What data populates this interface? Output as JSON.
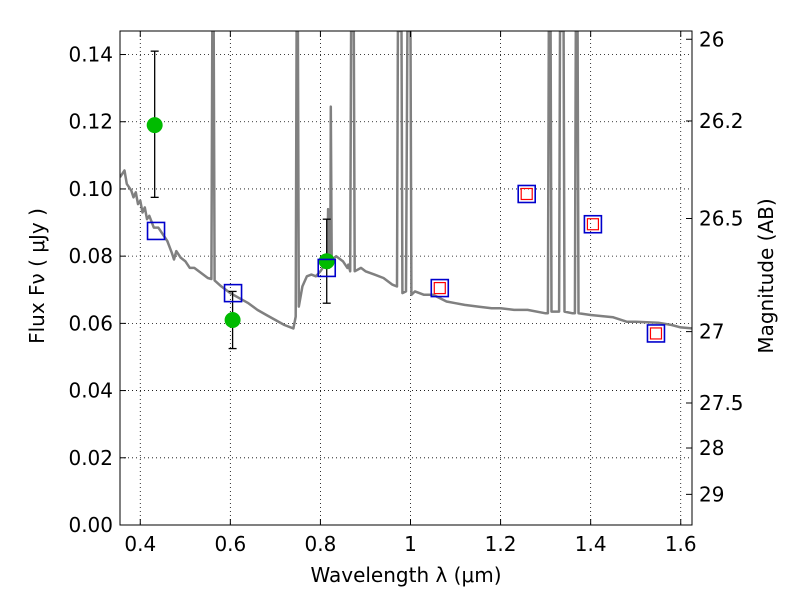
{
  "chart_data": {
    "type": "scatter",
    "xlabel": "Wavelength  λ (μm)",
    "ylabel": "Flux  Fν  ( μJy )",
    "y2label": "Magnitude (AB)",
    "xlim": [
      0.355,
      1.625
    ],
    "ylim": [
      0.0,
      0.147
    ],
    "grid": true,
    "grid_style": "dotted",
    "x_ticks": [
      {
        "value": 0.4,
        "label": "0.4"
      },
      {
        "value": 0.6,
        "label": "0.6"
      },
      {
        "value": 0.8,
        "label": "0.8"
      },
      {
        "value": 1.0,
        "label": "1"
      },
      {
        "value": 1.2,
        "label": "1.2"
      },
      {
        "value": 1.4,
        "label": "1.4"
      },
      {
        "value": 1.6,
        "label": "1.6"
      }
    ],
    "y_ticks": [
      {
        "value": 0.0,
        "label": "0.00"
      },
      {
        "value": 0.02,
        "label": "0.02"
      },
      {
        "value": 0.04,
        "label": "0.04"
      },
      {
        "value": 0.06,
        "label": "0.06"
      },
      {
        "value": 0.08,
        "label": "0.08"
      },
      {
        "value": 0.1,
        "label": "0.10"
      },
      {
        "value": 0.12,
        "label": "0.12"
      },
      {
        "value": 0.14,
        "label": "0.14"
      }
    ],
    "mag_ticks": [
      {
        "mag": 26.0,
        "label": "26"
      },
      {
        "mag": 26.2,
        "label": "26.2"
      },
      {
        "mag": 26.5,
        "label": "26.5"
      },
      {
        "mag": 27.0,
        "label": "27"
      },
      {
        "mag": 27.5,
        "label": "27.5"
      },
      {
        "mag": 28.0,
        "label": "28"
      },
      {
        "mag": 29.0,
        "label": "29"
      }
    ],
    "series": [
      {
        "kind": "spectrum",
        "color": "#808080",
        "points": [
          [
            0.355,
            0.1035
          ],
          [
            0.365,
            0.1055
          ],
          [
            0.37,
            0.1015
          ],
          [
            0.38,
            0.0995
          ],
          [
            0.385,
            0.0975
          ],
          [
            0.39,
            0.099
          ],
          [
            0.395,
            0.0955
          ],
          [
            0.4,
            0.0965
          ],
          [
            0.405,
            0.093
          ],
          [
            0.41,
            0.0945
          ],
          [
            0.415,
            0.091
          ],
          [
            0.42,
            0.092
          ],
          [
            0.43,
            0.0885
          ],
          [
            0.44,
            0.0885
          ],
          [
            0.45,
            0.0865
          ],
          [
            0.46,
            0.0845
          ],
          [
            0.47,
            0.081
          ],
          [
            0.475,
            0.079
          ],
          [
            0.48,
            0.0815
          ],
          [
            0.49,
            0.0795
          ],
          [
            0.5,
            0.0785
          ],
          [
            0.51,
            0.0765
          ],
          [
            0.52,
            0.0765
          ],
          [
            0.53,
            0.0755
          ],
          [
            0.54,
            0.0745
          ],
          [
            0.55,
            0.0735
          ],
          [
            0.558,
            0.0732
          ],
          [
            0.56,
            0.147
          ],
          [
            0.563,
            0.147
          ],
          [
            0.565,
            0.0728
          ],
          [
            0.58,
            0.071
          ],
          [
            0.6,
            0.069
          ],
          [
            0.62,
            0.0675
          ],
          [
            0.64,
            0.066
          ],
          [
            0.66,
            0.064
          ],
          [
            0.68,
            0.0625
          ],
          [
            0.7,
            0.061
          ],
          [
            0.72,
            0.0595
          ],
          [
            0.74,
            0.0585
          ],
          [
            0.745,
            0.062
          ],
          [
            0.747,
            0.147
          ],
          [
            0.75,
            0.147
          ],
          [
            0.752,
            0.065
          ],
          [
            0.76,
            0.071
          ],
          [
            0.77,
            0.074
          ],
          [
            0.78,
            0.0745
          ],
          [
            0.79,
            0.074
          ],
          [
            0.8,
            0.0755
          ],
          [
            0.81,
            0.0775
          ],
          [
            0.815,
            0.0765
          ],
          [
            0.817,
            0.094
          ],
          [
            0.819,
            0.0765
          ],
          [
            0.822,
            0.079
          ],
          [
            0.823,
            0.1245
          ],
          [
            0.825,
            0.079
          ],
          [
            0.835,
            0.08
          ],
          [
            0.85,
            0.0785
          ],
          [
            0.86,
            0.0765
          ],
          [
            0.862,
            0.0775
          ],
          [
            0.866,
            0.0755
          ],
          [
            0.868,
            0.147
          ],
          [
            0.874,
            0.147
          ],
          [
            0.876,
            0.0755
          ],
          [
            0.89,
            0.0765
          ],
          [
            0.9,
            0.0755
          ],
          [
            0.92,
            0.0745
          ],
          [
            0.94,
            0.0735
          ],
          [
            0.96,
            0.0715
          ],
          [
            0.97,
            0.071
          ],
          [
            0.972,
            0.147
          ],
          [
            0.98,
            0.147
          ],
          [
            0.982,
            0.069
          ],
          [
            0.99,
            0.0695
          ],
          [
            0.993,
            0.147
          ],
          [
            1.0,
            0.147
          ],
          [
            1.002,
            0.0685
          ],
          [
            1.01,
            0.0695
          ],
          [
            1.03,
            0.0685
          ],
          [
            1.05,
            0.0685
          ],
          [
            1.08,
            0.0665
          ],
          [
            1.1,
            0.066
          ],
          [
            1.12,
            0.0655
          ],
          [
            1.15,
            0.065
          ],
          [
            1.18,
            0.0645
          ],
          [
            1.2,
            0.0645
          ],
          [
            1.23,
            0.064
          ],
          [
            1.26,
            0.064
          ],
          [
            1.3,
            0.063
          ],
          [
            1.305,
            0.063
          ],
          [
            1.307,
            0.147
          ],
          [
            1.311,
            0.147
          ],
          [
            1.313,
            0.0635
          ],
          [
            1.325,
            0.0635
          ],
          [
            1.33,
            0.0635
          ],
          [
            1.332,
            0.147
          ],
          [
            1.34,
            0.147
          ],
          [
            1.342,
            0.0635
          ],
          [
            1.36,
            0.063
          ],
          [
            1.365,
            0.063
          ],
          [
            1.367,
            0.147
          ],
          [
            1.371,
            0.147
          ],
          [
            1.373,
            0.063
          ],
          [
            1.4,
            0.0625
          ],
          [
            1.45,
            0.0618
          ],
          [
            1.48,
            0.0605
          ],
          [
            1.5,
            0.0605
          ],
          [
            1.55,
            0.0602
          ],
          [
            1.58,
            0.0595
          ],
          [
            1.6,
            0.0588
          ],
          [
            1.625,
            0.0585
          ]
        ]
      },
      {
        "kind": "measured",
        "color": "#00bb00",
        "points": [
          {
            "x": 0.432,
            "y": 0.119,
            "yerr_low": 0.0975,
            "yerr_high": 0.141
          },
          {
            "x": 0.605,
            "y": 0.061,
            "yerr_low": 0.0525,
            "yerr_high": 0.0695
          },
          {
            "x": 0.814,
            "y": 0.0785,
            "yerr_low": 0.066,
            "yerr_high": 0.091
          }
        ]
      },
      {
        "kind": "model-blue",
        "color": "#0000cc",
        "points": [
          {
            "x": 0.435,
            "y": 0.0875
          },
          {
            "x": 0.606,
            "y": 0.069
          },
          {
            "x": 0.814,
            "y": 0.0765
          },
          {
            "x": 1.065,
            "y": 0.0705
          },
          {
            "x": 1.258,
            "y": 0.0985
          },
          {
            "x": 1.405,
            "y": 0.0895
          },
          {
            "x": 1.545,
            "y": 0.057
          }
        ]
      },
      {
        "kind": "model-red",
        "color": "#ff0000",
        "points": [
          {
            "x": 1.065,
            "y": 0.0705
          },
          {
            "x": 1.258,
            "y": 0.0985
          },
          {
            "x": 1.405,
            "y": 0.0895
          },
          {
            "x": 1.545,
            "y": 0.057
          }
        ]
      }
    ]
  }
}
